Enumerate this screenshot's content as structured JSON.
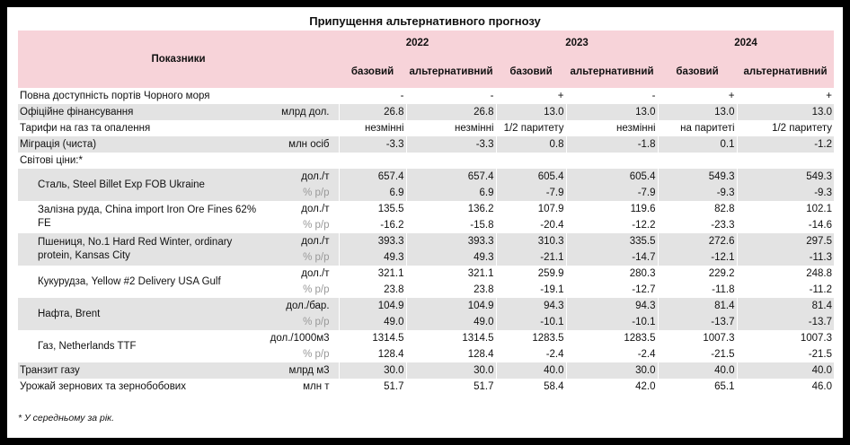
{
  "title": "Припущення альтернативного прогнозу",
  "header": {
    "indicators": "Показники",
    "years": [
      "2022",
      "2023",
      "2024"
    ],
    "base": "базовий",
    "alt": "альтернативний"
  },
  "simple_rows": [
    {
      "label": "Повна доступність портів Чорного моря",
      "unit": "",
      "values": [
        "-",
        "-",
        "+",
        "-",
        "+",
        "+"
      ],
      "shade": false
    },
    {
      "label": "Офіційне фінансування",
      "unit": "млрд дол.",
      "values": [
        "26.8",
        "26.8",
        "13.0",
        "13.0",
        "13.0",
        "13.0"
      ],
      "shade": true
    },
    {
      "label": "Тарифи на газ та опалення",
      "unit": "",
      "values": [
        "незмінні",
        "незмінні",
        "1/2 паритету",
        "незмінні",
        "на паритеті",
        "1/2 паритету"
      ],
      "shade": false
    },
    {
      "label": "Міграція (чиста)",
      "unit": "млн осіб",
      "values": [
        "-3.3",
        "-3.3",
        "0.8",
        "-1.8",
        "0.1",
        "-1.2"
      ],
      "shade": true
    },
    {
      "label": "Світові ціни:*",
      "unit": "",
      "values": [
        "",
        "",
        "",
        "",
        "",
        ""
      ],
      "shade": false
    }
  ],
  "price_rows": [
    {
      "label": "Сталь, Steel Billet Exp FOB Ukraine",
      "unit": "дол./т",
      "sub_unit": "% р/р",
      "values": [
        "657.4",
        "657.4",
        "605.4",
        "605.4",
        "549.3",
        "549.3"
      ],
      "sub_values": [
        "6.9",
        "6.9",
        "-7.9",
        "-7.9",
        "-9.3",
        "-9.3"
      ],
      "shade": true
    },
    {
      "label": "Залізна руда, China import Iron Ore Fines 62% FE",
      "unit": "дол./т",
      "sub_unit": "% р/р",
      "values": [
        "135.5",
        "136.2",
        "107.9",
        "119.6",
        "82.8",
        "102.1"
      ],
      "sub_values": [
        "-16.2",
        "-15.8",
        "-20.4",
        "-12.2",
        "-23.3",
        "-14.6"
      ],
      "shade": false
    },
    {
      "label": "Пшениця, No.1 Hard Red Winter, ordinary protein, Kansas City",
      "unit": "дол./т",
      "sub_unit": "% р/р",
      "values": [
        "393.3",
        "393.3",
        "310.3",
        "335.5",
        "272.6",
        "297.5"
      ],
      "sub_values": [
        "49.3",
        "49.3",
        "-21.1",
        "-14.7",
        "-12.1",
        "-11.3"
      ],
      "shade": true
    },
    {
      "label": "Кукурудза, Yellow #2 Delivery USA Gulf",
      "unit": "дол./т",
      "sub_unit": "% р/р",
      "values": [
        "321.1",
        "321.1",
        "259.9",
        "280.3",
        "229.2",
        "248.8"
      ],
      "sub_values": [
        "23.8",
        "23.8",
        "-19.1",
        "-12.7",
        "-11.8",
        "-11.2"
      ],
      "shade": false
    },
    {
      "label": "Нафта, Brent",
      "unit": "дол./бар.",
      "sub_unit": "% р/р",
      "values": [
        "104.9",
        "104.9",
        "94.3",
        "94.3",
        "81.4",
        "81.4"
      ],
      "sub_values": [
        "49.0",
        "49.0",
        "-10.1",
        "-10.1",
        "-13.7",
        "-13.7"
      ],
      "shade": true
    },
    {
      "label": "Газ, Netherlands TTF",
      "unit": "дол./1000м3",
      "sub_unit": "% р/р",
      "values": [
        "1314.5",
        "1314.5",
        "1283.5",
        "1283.5",
        "1007.3",
        "1007.3"
      ],
      "sub_values": [
        "128.4",
        "128.4",
        "-2.4",
        "-2.4",
        "-21.5",
        "-21.5"
      ],
      "shade": false
    }
  ],
  "bottom_rows": [
    {
      "label": "Транзит газу",
      "unit": "млрд м3",
      "values": [
        "30.0",
        "30.0",
        "40.0",
        "30.0",
        "40.0",
        "40.0"
      ],
      "shade": true
    },
    {
      "label": "Урожай зернових та зернобобових",
      "unit": "млн т",
      "values": [
        "51.7",
        "51.7",
        "58.4",
        "42.0",
        "65.1",
        "46.0"
      ],
      "shade": false
    }
  ],
  "footnote": "* У середньому за рік."
}
